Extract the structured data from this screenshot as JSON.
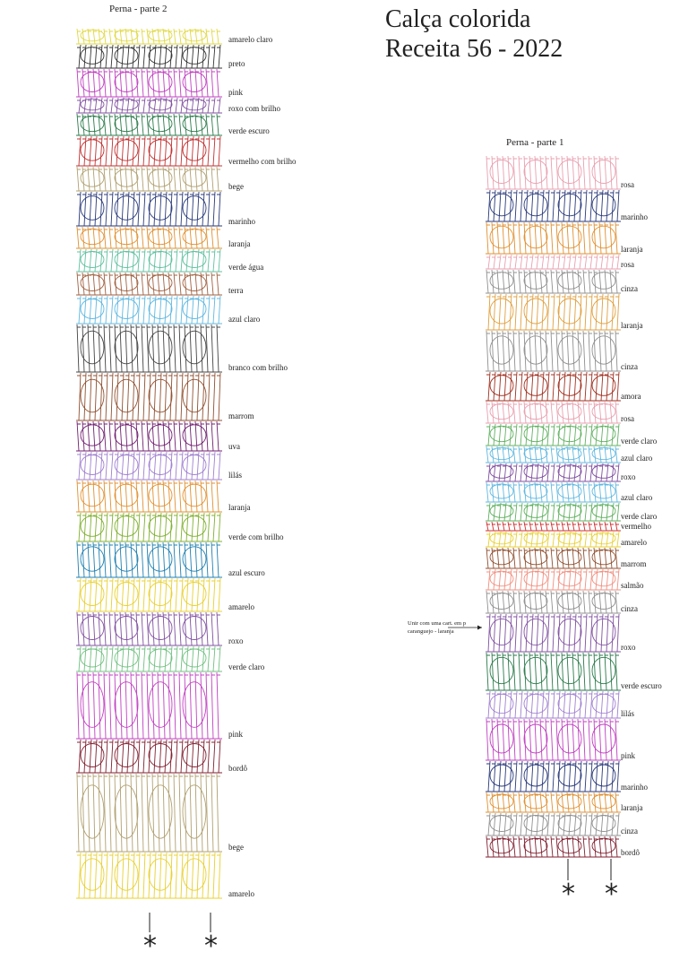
{
  "header": {
    "title_line1": "Calça colorida",
    "title_line2": "Receita 56 - 2022"
  },
  "left": {
    "title": "Perna - parte 2",
    "rows": [
      "amarelo claro",
      "preto",
      "pink",
      "roxo com brilho",
      "verde escuro",
      "vermelho com brilho",
      "bege",
      "marinho",
      "laranja",
      "verde água",
      "terra",
      "azul claro",
      "branco com brilho",
      "marrom",
      "uva",
      "lilás",
      "laranja",
      "verde com brilho",
      "azul escuro",
      "amarelo",
      "roxo",
      "verde claro",
      "pink",
      "bordô",
      "bege",
      "amarelo"
    ]
  },
  "right": {
    "title": "Perna - parte 1",
    "rows": [
      "rosa",
      "marinho",
      "laranja",
      "rosa",
      "cinza",
      "laranja",
      "cinza",
      "amora",
      "rosa",
      "verde claro",
      "azul claro",
      "roxo",
      "azul claro",
      "verde claro",
      "vermelho",
      "amarelo",
      "marrom",
      "salmão",
      "cinza",
      "roxo",
      "verde escuro",
      "lilás",
      "pink",
      "marinho",
      "laranja",
      "cinza",
      "bordô"
    ]
  },
  "annotation": {
    "lines": [
      "Unir com uma cart. em p",
      "caranguejo - laranja"
    ]
  },
  "asterisks": [
    "*",
    "*",
    "*",
    "*"
  ]
}
